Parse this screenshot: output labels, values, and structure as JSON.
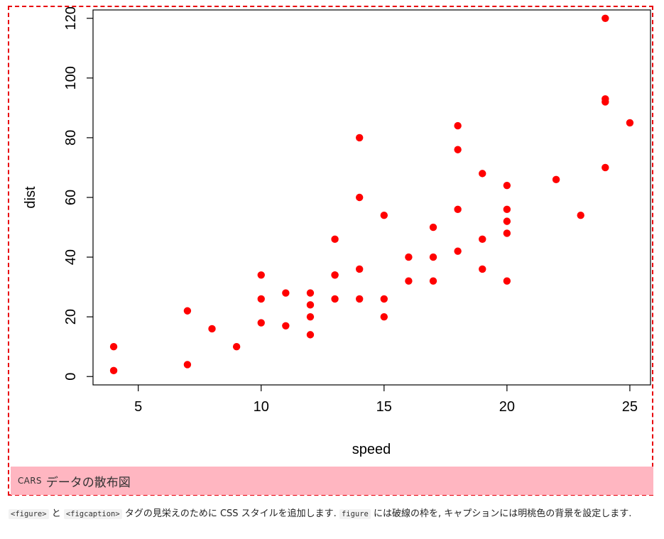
{
  "chart_data": {
    "type": "scatter",
    "title": "",
    "xlabel": "speed",
    "ylabel": "dist",
    "xlim": [
      3.16,
      25.84
    ],
    "ylim": [
      -2.8,
      122.8
    ],
    "xticks": [
      5,
      10,
      15,
      20,
      25
    ],
    "yticks": [
      0,
      20,
      40,
      60,
      80,
      100,
      120
    ],
    "grid": false,
    "point_color": "#ff0000",
    "series": [
      {
        "points": [
          [
            4,
            2
          ],
          [
            4,
            10
          ],
          [
            7,
            4
          ],
          [
            7,
            22
          ],
          [
            8,
            16
          ],
          [
            9,
            10
          ],
          [
            10,
            18
          ],
          [
            10,
            26
          ],
          [
            10,
            34
          ],
          [
            11,
            17
          ],
          [
            11,
            28
          ],
          [
            12,
            14
          ],
          [
            12,
            20
          ],
          [
            12,
            24
          ],
          [
            12,
            28
          ],
          [
            13,
            26
          ],
          [
            13,
            34
          ],
          [
            13,
            34
          ],
          [
            13,
            46
          ],
          [
            14,
            26
          ],
          [
            14,
            36
          ],
          [
            14,
            60
          ],
          [
            14,
            80
          ],
          [
            15,
            20
          ],
          [
            15,
            26
          ],
          [
            15,
            54
          ],
          [
            16,
            32
          ],
          [
            16,
            40
          ],
          [
            17,
            32
          ],
          [
            17,
            40
          ],
          [
            17,
            50
          ],
          [
            18,
            42
          ],
          [
            18,
            56
          ],
          [
            18,
            76
          ],
          [
            18,
            84
          ],
          [
            19,
            36
          ],
          [
            19,
            46
          ],
          [
            19,
            68
          ],
          [
            20,
            32
          ],
          [
            20,
            48
          ],
          [
            20,
            52
          ],
          [
            20,
            56
          ],
          [
            20,
            64
          ],
          [
            22,
            66
          ],
          [
            23,
            54
          ],
          [
            24,
            70
          ],
          [
            24,
            92
          ],
          [
            24,
            93
          ],
          [
            24,
            120
          ],
          [
            25,
            85
          ]
        ]
      }
    ]
  },
  "figcaption": {
    "prefix": "CARS",
    "text": "データの散布図"
  },
  "note": {
    "code_figure": "<figure>",
    "conj1": " と ",
    "code_figcaption": "<figcaption>",
    "text1": " タグの見栄えのために CSS スタイルを追加します. ",
    "code_figure2": "figure",
    "text2": " には破線の枠を, キャプションには明桃色の背景を設定します."
  },
  "colors": {
    "border": "#e8000b",
    "caption_bg": "#ffb6c1",
    "points": "#ff0000"
  }
}
